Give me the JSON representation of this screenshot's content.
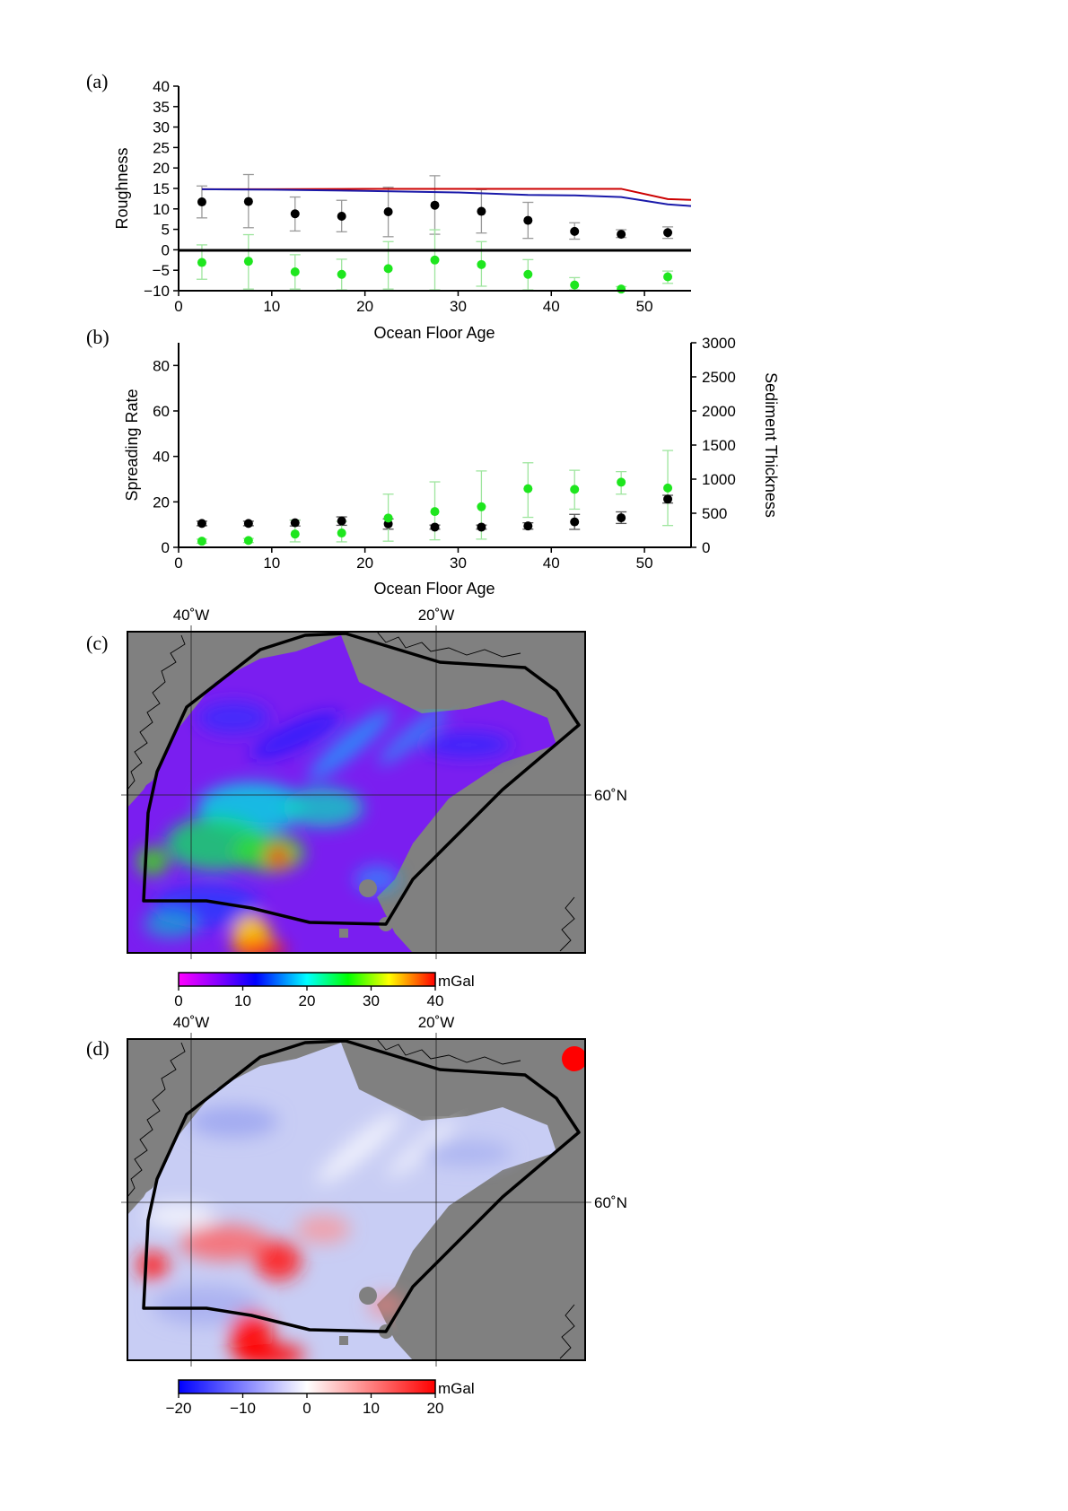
{
  "panels": {
    "a": "(a)",
    "b": "(b)",
    "c": "(c)",
    "d": "(d)"
  },
  "chart_data": [
    {
      "id": "a",
      "type": "scatter",
      "xlabel": "Ocean Floor Age",
      "ylabel": "Roughness",
      "xlim": [
        0,
        55
      ],
      "ylim": [
        -10,
        40
      ],
      "xticks": [
        "0",
        "10",
        "20",
        "30",
        "40",
        "50"
      ],
      "yticks": [
        "−10",
        "−5",
        "0",
        "5",
        "10",
        "15",
        "20",
        "25",
        "30",
        "35",
        "40"
      ],
      "x": [
        2.5,
        7.5,
        12.5,
        17.5,
        22.5,
        27.5,
        32.5,
        37.5,
        42.5,
        47.5,
        52.5
      ],
      "series": [
        {
          "color": "#000000",
          "marker": "dot",
          "values": [
            11.7,
            11.8,
            8.8,
            8.2,
            9.3,
            10.9,
            9.4,
            7.2,
            4.5,
            3.8,
            4.2
          ],
          "err_low": [
            7.8,
            5.4,
            4.6,
            4.4,
            3.2,
            3.8,
            4.1,
            2.8,
            2.6,
            3.0,
            2.8
          ],
          "err_high": [
            15.6,
            18.4,
            12.9,
            12.1,
            15.3,
            18.1,
            14.7,
            11.6,
            6.6,
            4.9,
            5.6
          ],
          "err_color": "#9a9a9a"
        },
        {
          "color": "#1ee61e",
          "marker": "dot",
          "values": [
            -3.1,
            -2.8,
            -5.4,
            -6.0,
            -4.6,
            -2.5,
            -3.6,
            -6.0,
            -8.6,
            -9.6,
            -6.6
          ],
          "err_low": [
            -7.2,
            -9.6,
            -9.6,
            -9.8,
            -9.6,
            -9.8,
            -8.9,
            -9.8,
            -9.8,
            -10.0,
            -8.2
          ],
          "err_high": [
            1.2,
            3.7,
            -1.2,
            -2.3,
            2.0,
            4.9,
            2.0,
            -2.4,
            -6.8,
            -9.0,
            -5.2
          ],
          "err_color": "#9ee59e"
        },
        {
          "color": "#cc0000",
          "marker": "line",
          "x": [
            2.5,
            10,
            20,
            30,
            40,
            47.5,
            52.5,
            55
          ],
          "values": [
            14.8,
            14.8,
            14.9,
            14.9,
            14.9,
            14.9,
            12.4,
            12.2
          ]
        },
        {
          "color": "#1a1aaa",
          "marker": "line",
          "x": [
            2.5,
            10,
            20,
            30,
            37.5,
            42.5,
            47.5,
            52.5,
            55
          ],
          "values": [
            14.8,
            14.7,
            14.4,
            14.0,
            13.4,
            13.3,
            12.9,
            11.1,
            10.7
          ]
        }
      ],
      "hlines": [
        0
      ]
    },
    {
      "id": "b",
      "type": "scatter",
      "xlabel": "Ocean Floor Age",
      "ylabel": "Spreading Rate",
      "ylabel2": "Sediment Thickness",
      "xlim": [
        0,
        55
      ],
      "ylim": [
        0,
        90
      ],
      "y2lim": [
        0,
        3000
      ],
      "xticks": [
        "0",
        "10",
        "20",
        "30",
        "40",
        "50"
      ],
      "yticks": [
        "0",
        "20",
        "40",
        "60",
        "80"
      ],
      "y2ticks": [
        "0",
        "500",
        "1000",
        "1500",
        "2000",
        "2500",
        "3000"
      ],
      "x": [
        2.5,
        7.5,
        12.5,
        17.5,
        22.5,
        27.5,
        32.5,
        37.5,
        42.5,
        47.5,
        52.5
      ],
      "series": [
        {
          "axis": "left",
          "color": "#000000",
          "values": [
            10.5,
            10.5,
            10.8,
            11.6,
            10.3,
            8.9,
            8.9,
            9.4,
            11.2,
            13.0,
            21.2
          ],
          "err_low": [
            9.5,
            9.5,
            9.4,
            9.7,
            8.0,
            8.0,
            8.0,
            8.0,
            7.9,
            10.5,
            19.5
          ],
          "err_high": [
            11.5,
            11.5,
            12.0,
            13.4,
            12.5,
            9.8,
            9.8,
            10.8,
            14.5,
            15.6,
            22.9
          ],
          "err_color": "#555555"
        },
        {
          "axis": "right",
          "color": "#1ee61e",
          "values": [
            90,
            100,
            195,
            210,
            430,
            525,
            595,
            860,
            850,
            955,
            870
          ],
          "err_low": [
            60,
            70,
            80,
            80,
            90,
            110,
            120,
            440,
            560,
            780,
            320
          ],
          "err_high": [
            120,
            130,
            400,
            380,
            780,
            960,
            1120,
            1240,
            1130,
            1110,
            1420
          ],
          "err_color": "#9ee59e"
        }
      ]
    },
    {
      "id": "c",
      "type": "heatmap",
      "lon_labels": [
        "40˚W",
        "20˚W"
      ],
      "lat_labels": [
        "60˚N"
      ],
      "colorbar": {
        "unit": "mGal",
        "ticks": [
          "0",
          "10",
          "20",
          "30",
          "40"
        ],
        "range": [
          0,
          40
        ],
        "colors": [
          "#ff00ff",
          "#8000ff",
          "#0000ff",
          "#00ffff",
          "#00ff00",
          "#ffff00",
          "#ff0000"
        ]
      }
    },
    {
      "id": "d",
      "type": "heatmap",
      "lon_labels": [
        "40˚W",
        "20˚W"
      ],
      "lat_labels": [
        "60˚N"
      ],
      "colorbar": {
        "unit": "mGal",
        "ticks": [
          "−20",
          "−10",
          "0",
          "10",
          "20"
        ],
        "range": [
          -20,
          20
        ],
        "colors": [
          "#0000ff",
          "#ffffff",
          "#ff0000"
        ]
      }
    }
  ],
  "map": {
    "land_color": "#808080"
  }
}
